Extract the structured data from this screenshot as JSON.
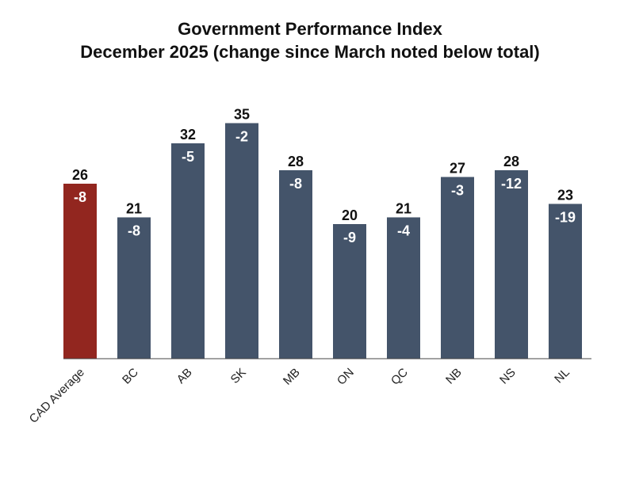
{
  "chart_data": {
    "type": "bar",
    "title": "Government Performance Index",
    "subtitle": "December 2025 (change since March noted below total)",
    "xlabel": "",
    "ylabel": "",
    "ylim": [
      0,
      40
    ],
    "grid": false,
    "legend": "none",
    "categories": [
      "CAD Average",
      "BC",
      "AB",
      "SK",
      "MB",
      "ON",
      "QC",
      "NB",
      "NS",
      "NL"
    ],
    "series": [
      {
        "values": [
          26,
          21,
          32,
          35,
          28,
          20,
          21,
          27,
          28,
          23
        ]
      }
    ],
    "change_since_march": [
      "-8",
      "-8",
      "-5",
      "-2",
      "-8",
      "-9",
      "-4",
      "-3",
      "-12",
      "-19"
    ],
    "colors": {
      "highlight": "#92261f",
      "bar": "#44546a",
      "axis": "#444444"
    },
    "highlight_category": "CAD Average"
  }
}
